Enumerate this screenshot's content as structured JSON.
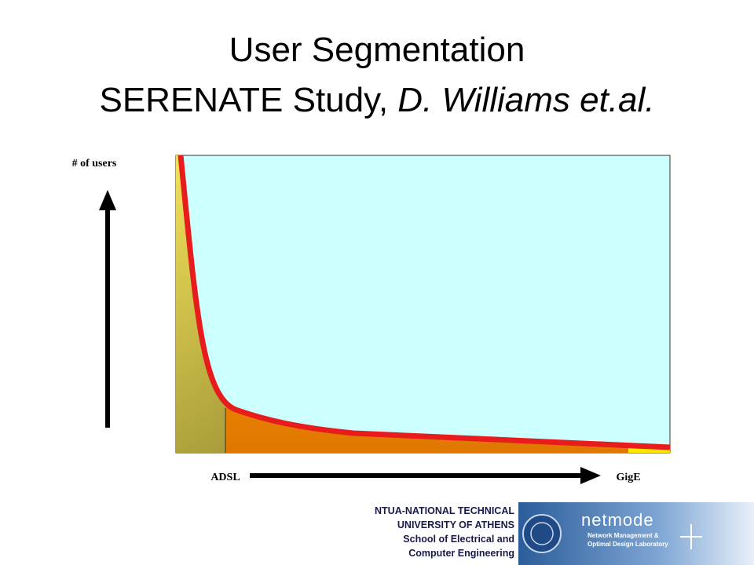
{
  "title": {
    "line1": "User Segmentation",
    "line2_plain": "SERENATE Study, ",
    "line2_italic": "D. Williams et.al."
  },
  "diagram": {
    "y_label": "# of users",
    "x_start_label": "ADSL",
    "x_end_label": "GigE"
  },
  "footer": {
    "lines": [
      "NTUA-NATIONAL TECHNICAL",
      "UNIVERSITY OF ATHENS",
      "School of Electrical and",
      "Computer Engineering"
    ],
    "logo": {
      "name": "netmode",
      "line1": "Network Management &",
      "line2": "Optimal Design Laboratory"
    }
  }
}
